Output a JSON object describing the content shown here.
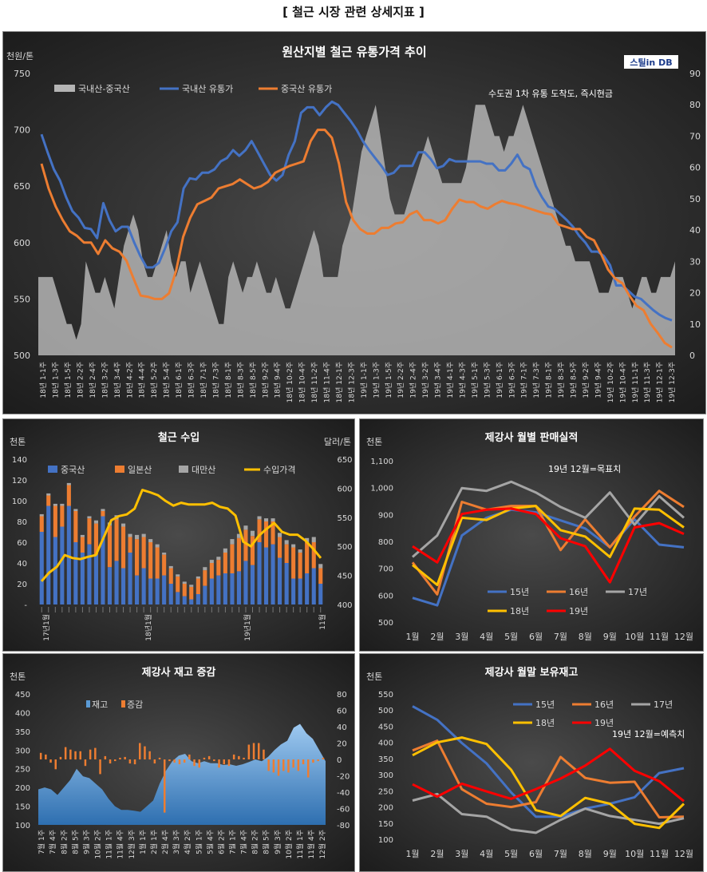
{
  "page_title": "[ 철근 시장 관련 상세지표 ]",
  "chart_data": [
    {
      "id": "price",
      "type": "area",
      "title": "원산지별 철근 유통가격 추이",
      "ylabel_left": "천원/톤",
      "note": "수도권 1차 유통 도착도, 즉시현금",
      "logo": "스틸in DB",
      "ylim": [
        500,
        750
      ],
      "y2lim": [
        0,
        90
      ],
      "yticks": [
        500,
        550,
        600,
        650,
        700,
        750
      ],
      "y2ticks": [
        0,
        10,
        20,
        30,
        40,
        50,
        60,
        70,
        80,
        90
      ],
      "x_ticks": [
        "18년 1-1주",
        "18년 1-3주",
        "18년 1-5주",
        "18년 2-2주",
        "18년 2-4주",
        "18년 3-2주",
        "18년 3-4주",
        "18년 4-2주",
        "18년 4-4주",
        "18년 5-2주",
        "18년 5-4주",
        "18년 6-1주",
        "18년 6-3주",
        "18년 7-1주",
        "18년 7-3주",
        "18년 8-1주",
        "18년 8-3주",
        "18년 8-5주",
        "18년 9-2주",
        "18년 9-4주",
        "18년 10-2주",
        "18년 10-4주",
        "18년 11-2주",
        "18년 11-4주",
        "18년 12-1주",
        "18년 12-3주",
        "19년 1-1주",
        "19년 1-3주",
        "19년 1-5주",
        "19년 2-2주",
        "19년 2-4주",
        "19년 3-2주",
        "19년 3-4주",
        "19년 4-1주",
        "19년 4-3주",
        "19년 5-1주",
        "19년 5-3주",
        "19년 6-1주",
        "19년 6-3주",
        "19년 7-1주",
        "19년 7-3주",
        "19년 8-1주",
        "19년 8-3주",
        "19년 8-5주",
        "19년 9-2주",
        "19년 9-4주",
        "19년 10-2주",
        "19년 10-4주",
        "19년 11-1주",
        "19년 11-3주",
        "19년 12-1주",
        "19년 12-3주"
      ],
      "series": [
        {
          "name": "국내산-중국산",
          "axis": "right",
          "color": "#b4b4b4",
          "values": [
            25,
            25,
            25,
            25,
            20,
            15,
            10,
            10,
            5,
            10,
            30,
            25,
            20,
            20,
            25,
            20,
            15,
            25,
            35,
            40,
            45,
            40,
            30,
            25,
            25,
            30,
            35,
            40,
            30,
            25,
            30,
            30,
            20,
            25,
            30,
            25,
            20,
            15,
            10,
            10,
            25,
            30,
            25,
            20,
            25,
            25,
            30,
            25,
            20,
            20,
            25,
            20,
            15,
            15,
            20,
            25,
            30,
            35,
            40,
            35,
            25,
            25,
            25,
            25,
            35,
            40,
            45,
            55,
            65,
            70,
            75,
            80,
            70,
            60,
            50,
            45,
            45,
            45,
            50,
            55,
            60,
            65,
            70,
            65,
            60,
            55,
            55,
            55,
            55,
            55,
            60,
            70,
            80,
            80,
            80,
            75,
            70,
            70,
            65,
            70,
            70,
            75,
            80,
            75,
            70,
            65,
            60,
            55,
            50,
            45,
            40,
            35,
            35,
            30,
            30,
            30,
            30,
            25,
            20,
            20,
            20,
            25,
            25,
            25,
            20,
            15,
            20,
            25,
            25,
            20,
            20,
            25,
            25,
            25,
            30
          ]
        },
        {
          "name": "국내산 유통가",
          "axis": "left",
          "color": "#4472c4",
          "values": [
            696,
            680,
            665,
            655,
            640,
            628,
            622,
            613,
            612,
            604,
            635,
            620,
            610,
            614,
            614,
            600,
            588,
            578,
            578,
            582,
            595,
            610,
            618,
            648,
            657,
            656,
            662,
            662,
            665,
            672,
            675,
            682,
            677,
            682,
            690,
            680,
            670,
            660,
            655,
            660,
            678,
            690,
            715,
            720,
            720,
            713,
            720,
            725,
            722,
            715,
            708,
            700,
            690,
            682,
            675,
            668,
            660,
            662,
            668,
            668,
            668,
            680,
            680,
            674,
            666,
            668,
            674,
            672,
            672,
            672,
            672,
            672,
            670,
            670,
            664,
            664,
            670,
            678,
            668,
            665,
            650,
            640,
            632,
            630,
            625,
            620,
            614,
            606,
            600,
            592,
            592,
            588,
            580,
            562,
            562,
            557,
            552,
            550,
            545,
            540,
            536,
            533,
            531
          ]
        },
        {
          "name": "중국산 유통가",
          "axis": "left",
          "color": "#ed7d31",
          "values": [
            670,
            648,
            632,
            620,
            610,
            606,
            600,
            600,
            590,
            602,
            595,
            592,
            584,
            568,
            553,
            552,
            550,
            550,
            555,
            575,
            605,
            622,
            634,
            637,
            640,
            648,
            650,
            652,
            656,
            652,
            648,
            650,
            654,
            662,
            665,
            668,
            670,
            672,
            690,
            700,
            700,
            693,
            670,
            636,
            620,
            612,
            608,
            608,
            613,
            613,
            617,
            618,
            625,
            628,
            620,
            620,
            617,
            620,
            630,
            638,
            636,
            636,
            632,
            630,
            634,
            637,
            635,
            634,
            632,
            630,
            628,
            626,
            625,
            616,
            614,
            612,
            612,
            605,
            602,
            590,
            576,
            568,
            564,
            553,
            544,
            540,
            528,
            520,
            511,
            507
          ]
        }
      ]
    },
    {
      "id": "import",
      "type": "bar",
      "title": "철근 수입",
      "ylabel_left": "천톤",
      "ylabel_right": "달러/톤",
      "ylim": [
        0,
        140
      ],
      "y2lim": [
        400,
        650
      ],
      "yticks": [
        "-",
        "20",
        "40",
        "60",
        "80",
        "100",
        "120",
        "140"
      ],
      "y2ticks": [
        400,
        450,
        500,
        550,
        600,
        650
      ],
      "x_year_labels": [
        "17년1월",
        "18년1월",
        "19년1월",
        "11월"
      ],
      "series": [
        {
          "name": "중국산",
          "color": "#4472c4",
          "values": [
            70,
            95,
            65,
            75,
            95,
            60,
            50,
            58,
            48,
            85,
            36,
            42,
            35,
            50,
            28,
            35,
            25,
            25,
            28,
            20,
            12,
            8,
            5,
            10,
            18,
            25,
            28,
            30,
            30,
            32,
            42,
            38,
            60,
            55,
            58,
            45,
            40,
            25,
            25,
            30,
            35,
            20
          ]
        },
        {
          "name": "일본산",
          "color": "#ed7d31",
          "values": [
            15,
            10,
            30,
            20,
            20,
            30,
            15,
            25,
            30,
            5,
            40,
            40,
            40,
            15,
            35,
            30,
            35,
            30,
            20,
            15,
            15,
            12,
            12,
            15,
            15,
            15,
            15,
            20,
            28,
            32,
            30,
            28,
            22,
            25,
            22,
            20,
            18,
            30,
            25,
            30,
            25,
            15
          ]
        },
        {
          "name": "대만산",
          "color": "#a5a5a5",
          "values": [
            2,
            2,
            2,
            2,
            2,
            2,
            2,
            2,
            3,
            2,
            3,
            4,
            3,
            3,
            4,
            3,
            3,
            3,
            2,
            2,
            2,
            2,
            2,
            2,
            3,
            3,
            3,
            4,
            5,
            4,
            4,
            5,
            3,
            3,
            3,
            4,
            4,
            3,
            3,
            4,
            5,
            4
          ]
        },
        {
          "name": "수입가격",
          "axis": "right",
          "color": "#ffc000",
          "values": [
            440,
            455,
            465,
            485,
            480,
            478,
            482,
            485,
            515,
            545,
            552,
            555,
            565,
            597,
            593,
            588,
            578,
            570,
            575,
            572,
            572,
            572,
            575,
            568,
            565,
            553,
            508,
            500,
            518,
            530,
            540,
            525,
            520,
            520,
            510,
            496,
            480
          ]
        }
      ]
    },
    {
      "id": "sales",
      "type": "line",
      "title": "제강사 월별 판매실적",
      "ylabel_left": "천톤",
      "note": "19년 12월=목표치",
      "ylim": [
        500,
        1100
      ],
      "yticks": [
        "500",
        "600",
        "700",
        "800",
        "900",
        "1,000",
        "1,100"
      ],
      "categories": [
        "1월",
        "2월",
        "3월",
        "4월",
        "5월",
        "6월",
        "7월",
        "8월",
        "9월",
        "10월",
        "11월",
        "12월"
      ],
      "series": [
        {
          "name": "15년",
          "color": "#4472c4",
          "values": [
            590,
            562,
            822,
            888,
            918,
            908,
            878,
            848,
            778,
            882,
            788,
            778
          ]
        },
        {
          "name": "16년",
          "color": "#ed7d31",
          "values": [
            722,
            603,
            947,
            918,
            932,
            932,
            768,
            882,
            778,
            892,
            988,
            928
          ]
        },
        {
          "name": "17년",
          "color": "#a5a5a5",
          "values": [
            742,
            822,
            998,
            988,
            1022,
            982,
            928,
            888,
            982,
            862,
            968,
            888
          ]
        },
        {
          "name": "18년",
          "color": "#ffc000",
          "values": [
            712,
            638,
            888,
            880,
            922,
            932,
            842,
            818,
            742,
            922,
            918,
            852
          ]
        },
        {
          "name": "19년",
          "color": "#ff0000",
          "values": [
            782,
            722,
            902,
            918,
            922,
            902,
            812,
            782,
            648,
            852,
            868,
            828
          ]
        }
      ]
    },
    {
      "id": "inventory_change",
      "type": "area",
      "title": "제강사 재고 증감",
      "ylabel_left": "천톤",
      "ylim": [
        100,
        450
      ],
      "y2lim": [
        -80,
        80
      ],
      "yticks": [
        100,
        150,
        200,
        250,
        300,
        350,
        400,
        450
      ],
      "y2ticks": [
        -80,
        -60,
        -40,
        -20,
        0,
        20,
        40,
        60,
        80
      ],
      "x_ticks": [
        "7월 1주",
        "7월 4주",
        "8월 2주",
        "8월 5주",
        "9월 3주",
        "10월 2주",
        "11월 1주",
        "11월 4주",
        "12월 3주",
        "1월 1주",
        "2월 1주",
        "2월 4주",
        "3월 3주",
        "4월 2주",
        "5월 1주",
        "5월 4주",
        "6월 2주",
        "7월 1주",
        "7월 4주",
        "8월 2주",
        "8월 5주",
        "9월 3주",
        "10월 2주",
        "11월 1주",
        "11월 4주",
        "12월 2주"
      ],
      "series": [
        {
          "name": "재고",
          "color": "#5b9bd5",
          "values": [
            195,
            200,
            195,
            180,
            200,
            220,
            250,
            230,
            225,
            210,
            195,
            170,
            150,
            140,
            140,
            138,
            135,
            150,
            165,
            210,
            245,
            270,
            285,
            290,
            270,
            265,
            270,
            265,
            265,
            260,
            262,
            258,
            262,
            268,
            275,
            270,
            282,
            300,
            315,
            325,
            360,
            370,
            345,
            330,
            300,
            270
          ]
        },
        {
          "name": "증감",
          "axis": "right",
          "color": "#ed7d31",
          "values": [
            8,
            6,
            -4,
            -12,
            3,
            15,
            12,
            10,
            10,
            -8,
            12,
            14,
            -18,
            4,
            -5,
            -2,
            2,
            3,
            -5,
            -6,
            20,
            16,
            10,
            -5,
            2,
            -65,
            -2,
            -4,
            -6,
            -4,
            6,
            -8,
            -10,
            2,
            4,
            -2,
            -10,
            -6,
            -8,
            6,
            4,
            2,
            18,
            20,
            20,
            12,
            -14,
            -16,
            -20,
            -14,
            -16,
            -10,
            -14,
            -6,
            -22,
            -4,
            -2,
            2
          ]
        }
      ]
    },
    {
      "id": "month_end_inventory",
      "type": "line",
      "title": "제강사 월말 보유재고",
      "ylabel_left": "천톤",
      "note": "19년 12월=예측치",
      "ylim": [
        100,
        550
      ],
      "yticks": [
        100,
        150,
        200,
        250,
        300,
        350,
        400,
        450,
        500,
        550
      ],
      "categories": [
        "1월",
        "2월",
        "3월",
        "4월",
        "5월",
        "6월",
        "7월",
        "8월",
        "9월",
        "10월",
        "11월",
        "12월"
      ],
      "series": [
        {
          "name": "15년",
          "color": "#4472c4",
          "values": [
            512,
            470,
            398,
            335,
            245,
            170,
            170,
            195,
            210,
            230,
            305,
            320
          ]
        },
        {
          "name": "16년",
          "color": "#ed7d31",
          "values": [
            375,
            405,
            255,
            210,
            200,
            215,
            355,
            290,
            275,
            278,
            168,
            170
          ]
        },
        {
          "name": "17년",
          "color": "#a5a5a5",
          "values": [
            220,
            240,
            178,
            170,
            130,
            120,
            160,
            195,
            172,
            160,
            148,
            165
          ]
        },
        {
          "name": "18년",
          "color": "#ffc000",
          "values": [
            360,
            400,
            415,
            395,
            315,
            190,
            172,
            228,
            210,
            148,
            135,
            210
          ]
        },
        {
          "name": "19년",
          "color": "#ff0000",
          "values": [
            270,
            232,
            272,
            248,
            225,
            255,
            288,
            328,
            380,
            312,
            280,
            218
          ]
        }
      ]
    }
  ]
}
